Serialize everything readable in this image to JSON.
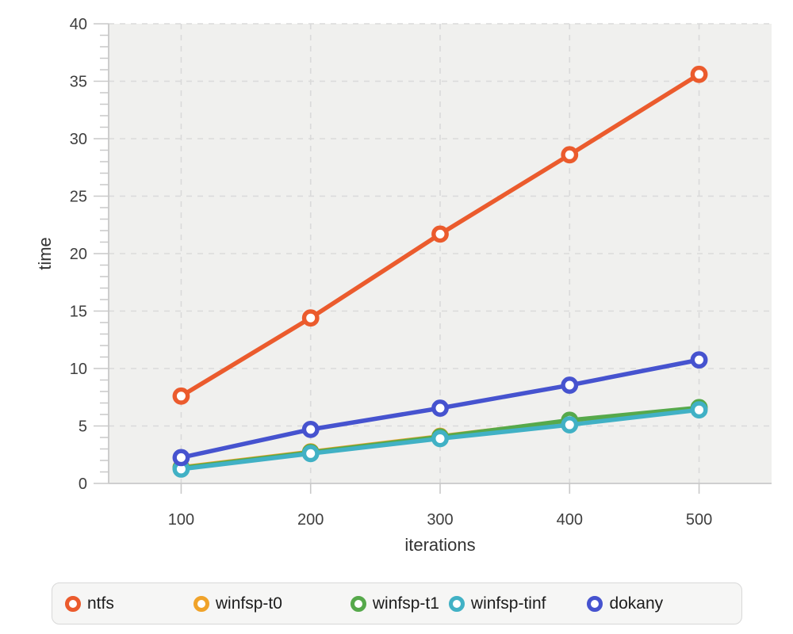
{
  "chart_data": {
    "type": "line",
    "title": "",
    "xlabel": "iterations",
    "ylabel": "time",
    "x": [
      100,
      200,
      300,
      400,
      500
    ],
    "xlim": [
      44,
      556
    ],
    "ylim": [
      0,
      40
    ],
    "x_ticks": [
      100,
      200,
      300,
      400,
      500
    ],
    "y_ticks": [
      0,
      5,
      10,
      15,
      20,
      25,
      30,
      35,
      40
    ],
    "y_minor_tick_step": 1,
    "grid": "dashed gridlines at every major x and y tick",
    "legend_position": "bottom",
    "series": [
      {
        "name": "ntfs",
        "color": "#eb5b2d",
        "values": [
          7.6,
          14.4,
          21.7,
          28.6,
          35.6
        ]
      },
      {
        "name": "winfsp-t0",
        "color": "#f0a32a",
        "values": [
          1.4,
          2.75,
          4.1,
          5.45,
          6.55
        ]
      },
      {
        "name": "winfsp-t1",
        "color": "#56a94b",
        "values": [
          1.35,
          2.7,
          4.05,
          5.5,
          6.6
        ]
      },
      {
        "name": "winfsp-tinf",
        "color": "#41b1c5",
        "values": [
          1.25,
          2.6,
          3.9,
          5.1,
          6.4
        ]
      },
      {
        "name": "dokany",
        "color": "#4653cf",
        "values": [
          2.25,
          4.7,
          6.55,
          8.55,
          10.75
        ]
      }
    ],
    "style": {
      "plot_bg": "#f0f0ee",
      "grid_color": "#dadada",
      "axis_color": "#c9c9c9",
      "tick_label_color": "#3f3f3f",
      "marker_fill": "#ffffff",
      "legend_bg": "#f6f6f5",
      "legend_border": "#d8d8d8"
    }
  }
}
